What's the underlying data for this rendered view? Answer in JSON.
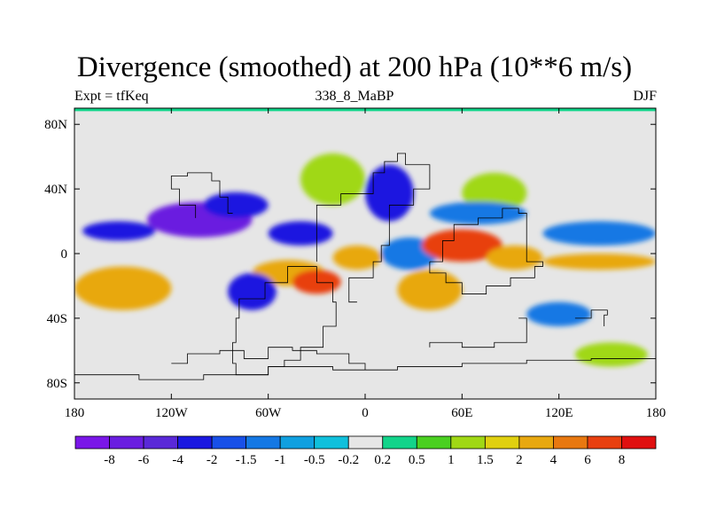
{
  "chart_data": {
    "type": "heatmap",
    "title": "Divergence (smoothed) at 200 hPa (10**6 m/s)",
    "subtitle_left": "Expt = tfKeq",
    "subtitle_center": "338_8_MaBP",
    "subtitle_right": "DJF",
    "xlim": [
      -180,
      180
    ],
    "ylim": [
      -90,
      90
    ],
    "x_ticks": [
      {
        "value": -180,
        "label": "180"
      },
      {
        "value": -120,
        "label": "120W"
      },
      {
        "value": -60,
        "label": "60W"
      },
      {
        "value": 0,
        "label": "0"
      },
      {
        "value": 60,
        "label": "60E"
      },
      {
        "value": 120,
        "label": "120E"
      },
      {
        "value": 180,
        "label": "180"
      }
    ],
    "y_ticks": [
      {
        "value": 80,
        "label": "80N"
      },
      {
        "value": 40,
        "label": "40N"
      },
      {
        "value": 0,
        "label": "0"
      },
      {
        "value": -40,
        "label": "40S"
      },
      {
        "value": -80,
        "label": "80S"
      }
    ],
    "colorbar": {
      "colors": [
        "#7a16e8",
        "#6a1ee0",
        "#5a28d8",
        "#1a18e0",
        "#1850e8",
        "#1478e4",
        "#10a0e0",
        "#10c0dc",
        "#e6e6e6",
        "#12d48a",
        "#4ad020",
        "#a0d814",
        "#e0d010",
        "#e8a810",
        "#e87810",
        "#e84010",
        "#e01010"
      ],
      "labels": [
        "-8",
        "-6",
        "-4",
        "-2",
        "-1.5",
        "-1",
        "-0.5",
        "-0.2",
        "0.2",
        "0.5",
        "1",
        "1.5",
        "2",
        "4",
        "6",
        "8"
      ]
    },
    "regions": [
      {
        "lon": [
          -180,
          -120
        ],
        "lat": [
          -35,
          -8
        ],
        "value": 2.5
      },
      {
        "lon": [
          -175,
          -130
        ],
        "lat": [
          8,
          20
        ],
        "value": -2.5
      },
      {
        "lon": [
          -135,
          -70
        ],
        "lat": [
          10,
          32
        ],
        "value": -6.5
      },
      {
        "lon": [
          -100,
          -60
        ],
        "lat": [
          22,
          38
        ],
        "value": -3
      },
      {
        "lon": [
          -60,
          -20
        ],
        "lat": [
          5,
          20
        ],
        "value": -3
      },
      {
        "lon": [
          -70,
          -25
        ],
        "lat": [
          -20,
          -4
        ],
        "value": 3
      },
      {
        "lon": [
          -45,
          -15
        ],
        "lat": [
          -25,
          -10
        ],
        "value": 6.5
      },
      {
        "lon": [
          -20,
          10
        ],
        "lat": [
          -10,
          5
        ],
        "value": 2.5
      },
      {
        "lon": [
          -85,
          -55
        ],
        "lat": [
          -35,
          -12
        ],
        "value": -3.5
      },
      {
        "lon": [
          -40,
          0
        ],
        "lat": [
          30,
          62
        ],
        "value": 1.2
      },
      {
        "lon": [
          0,
          30
        ],
        "lat": [
          20,
          55
        ],
        "value": -3.5
      },
      {
        "lon": [
          10,
          45
        ],
        "lat": [
          -10,
          10
        ],
        "value": -1.5
      },
      {
        "lon": [
          35,
          85
        ],
        "lat": [
          -5,
          15
        ],
        "value": 6
      },
      {
        "lon": [
          75,
          110
        ],
        "lat": [
          -10,
          5
        ],
        "value": 3.5
      },
      {
        "lon": [
          20,
          60
        ],
        "lat": [
          -35,
          -10
        ],
        "value": 2.5
      },
      {
        "lon": [
          60,
          100
        ],
        "lat": [
          25,
          50
        ],
        "value": 1.2
      },
      {
        "lon": [
          40,
          100
        ],
        "lat": [
          18,
          32
        ],
        "value": -1.2
      },
      {
        "lon": [
          110,
          180
        ],
        "lat": [
          -10,
          0
        ],
        "value": 2.5
      },
      {
        "lon": [
          110,
          180
        ],
        "lat": [
          5,
          20
        ],
        "value": -1.5
      },
      {
        "lon": [
          100,
          140
        ],
        "lat": [
          -45,
          -30
        ],
        "value": -1.5
      },
      {
        "lon": [
          130,
          175
        ],
        "lat": [
          -70,
          -55
        ],
        "value": 1
      }
    ]
  }
}
